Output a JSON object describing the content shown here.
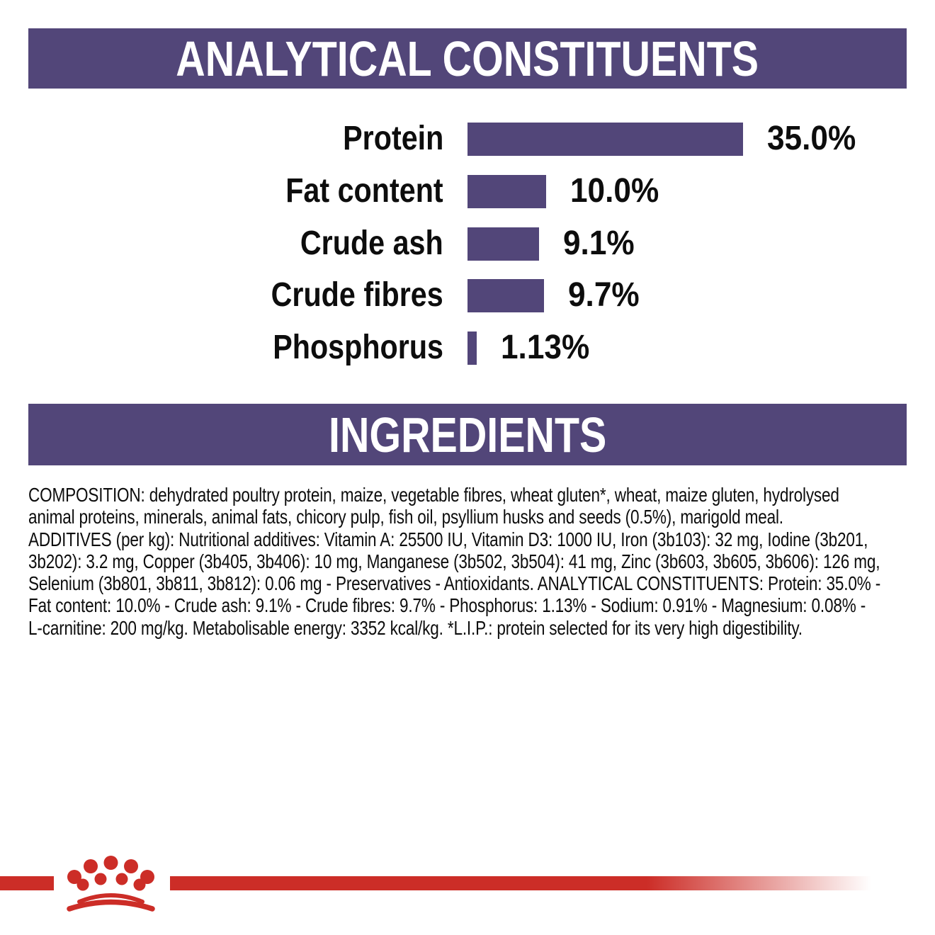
{
  "analytical_section": {
    "title": "ANALYTICAL CONSTITUENTS"
  },
  "chart_data": {
    "type": "bar",
    "orientation": "horizontal",
    "title": "ANALYTICAL CONSTITUENTS",
    "categories": [
      "Protein",
      "Fat content",
      "Crude ash",
      "Crude fibres",
      "Phosphorus"
    ],
    "values": [
      35.0,
      10.0,
      9.1,
      9.7,
      1.13
    ],
    "value_labels": [
      "35.0%",
      "10.0%",
      "9.1%",
      "9.7%",
      "1.13%"
    ],
    "unit": "%",
    "xlim": [
      0,
      35
    ],
    "grid": false,
    "legend": "none",
    "axis_labels": "none",
    "bar_color": "#524679"
  },
  "ingredients_section": {
    "title": "INGREDIENTS",
    "lines": [
      "COMPOSITION: dehydrated poultry protein, maize, vegetable fibres, wheat gluten*, wheat, maize gluten, hydrolysed",
      "animal proteins, minerals, animal fats, chicory pulp, fish oil, psyllium husks and seeds (0.5%), marigold meal.",
      "ADDITIVES (per kg): Nutritional additives: Vitamin A: 25500 IU, Vitamin D3: 1000 IU, Iron (3b103): 32 mg, Iodine (3b201,",
      "3b202): 3.2 mg, Copper (3b405, 3b406): 10 mg, Manganese (3b502, 3b504): 41 mg, Zinc (3b603, 3b605, 3b606): 126 mg,",
      "Selenium (3b801, 3b811, 3b812): 0.06 mg - Preservatives - Antioxidants. ANALYTICAL CONSTITUENTS: Protein: 35.0% -",
      "Fat content: 10.0% - Crude ash: 9.1% - Crude fibres: 9.7% - Phosphorus: 1.13% - Sodium: 0.91% - Magnesium: 0.08% -",
      "L-carnitine: 200 mg/kg. Metabolisable energy: 3352 kcal/kg. *L.I.P.: protein selected for its very high digestibility."
    ]
  },
  "footer": {
    "logo": "royal-canin-crown"
  },
  "colors": {
    "band_purple": "#524679",
    "bar_purple": "#524679",
    "brand_red": "#cc2d27",
    "title_text": "#ffffff",
    "body_text": "#0d0d0d",
    "background": "#ffffff"
  }
}
